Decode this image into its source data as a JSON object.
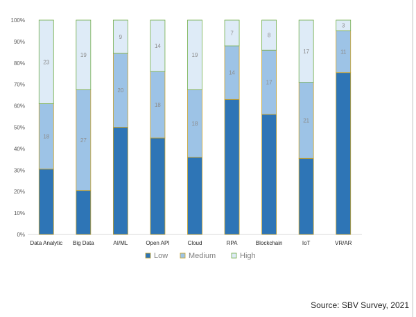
{
  "chart_data": {
    "type": "bar",
    "stacked": true,
    "categories": [
      "Data Analytic",
      "Big Data",
      "AI/ML",
      "Open API",
      "Cloud",
      "RPA",
      "Blockchain",
      "IoT",
      "VR/AR"
    ],
    "series": [
      {
        "name": "Low",
        "values": [
          30.5,
          20.5,
          50,
          45,
          36,
          63,
          56,
          35.5,
          75.5
        ],
        "color": "#2e75b6",
        "labels": [
          "",
          "",
          "",
          "",
          "",
          "",
          "",
          "",
          ""
        ]
      },
      {
        "name": "Medium",
        "values": [
          30.5,
          47,
          34.5,
          31,
          31.5,
          25,
          30,
          35.5,
          19.5
        ],
        "color": "#9dc3e6",
        "labels": [
          "18",
          "27",
          "20",
          "18",
          "18",
          "14",
          "17",
          "21",
          "11"
        ]
      },
      {
        "name": "High",
        "values": [
          39,
          32.5,
          15.5,
          24,
          32.5,
          12,
          14,
          29,
          5
        ],
        "color": "#deebf7",
        "labels": [
          "23",
          "19",
          "9",
          "14",
          "19",
          "7",
          "8",
          "17",
          "3"
        ]
      }
    ],
    "yticks": [
      "0%",
      "10%",
      "20%",
      "30%",
      "40%",
      "50%",
      "60%",
      "70%",
      "80%",
      "90%",
      "100%"
    ],
    "ylim": [
      0,
      100
    ],
    "grid": false,
    "legend": "bottom",
    "segment_border_color": "#c9a227",
    "top_border_color": "#70ad47"
  },
  "source": "Source: SBV Survey, 2021"
}
